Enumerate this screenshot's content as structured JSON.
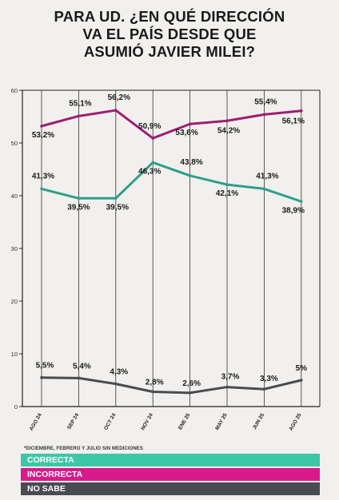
{
  "title_lines": [
    "PARA UD. ¿EN QUÉ DIRECCIÓN",
    "VA EL PAÍS DESDE QUE",
    "ASUMIÓ JAVIER MILEI?"
  ],
  "note": "*DICIEMBRE, FEBRERO Y JULIO SIN MEDICIONES",
  "legend": [
    {
      "label": "CORRECTA",
      "color": "#3ec7a7"
    },
    {
      "label": "INCORRECTA",
      "color": "#d81b8c"
    },
    {
      "label": "NO SABE",
      "color": "#4a4a52"
    }
  ],
  "chart_data": {
    "type": "line",
    "title": "PARA UD. ¿EN QUÉ DIRECCIÓN VA EL PAÍS DESDE QUE ASUMIÓ JAVIER MILEI?",
    "categories": [
      "AGO 24",
      "SEP 24",
      "OCT 24",
      "NOV 24",
      "ENE 25",
      "MAY 25",
      "JUN 25",
      "AGO 25"
    ],
    "ylim": [
      0,
      60
    ],
    "yticks": [
      0,
      10,
      20,
      30,
      40,
      50,
      60
    ],
    "grid": "vertical",
    "series": [
      {
        "name": "CORRECTA",
        "color": "#2e9f86",
        "values": [
          41.3,
          39.5,
          39.5,
          46.3,
          43.8,
          42.1,
          41.3,
          38.9
        ],
        "labels": [
          "41,3%",
          "39,5%",
          "39,5%",
          "46,3%",
          "43,8%",
          "42,1%",
          "41,3%",
          "38,9%"
        ]
      },
      {
        "name": "INCORRECTA",
        "color": "#9c1f73",
        "values": [
          53.2,
          55.1,
          56.2,
          50.9,
          53.6,
          54.2,
          55.4,
          56.1
        ],
        "labels": [
          "53,2%",
          "55,1%",
          "56,2%",
          "50,9%",
          "53,6%",
          "54,2%",
          "55,4%",
          "56,1%"
        ]
      },
      {
        "name": "NO SABE",
        "color": "#4a4a52",
        "values": [
          5.5,
          5.4,
          4.3,
          2.8,
          2.6,
          3.7,
          3.3,
          5
        ],
        "labels": [
          "5,5%",
          "5,4%",
          "4,3%",
          "2,8%",
          "2,6%",
          "3,7%",
          "3,3%",
          "5%"
        ]
      }
    ]
  }
}
